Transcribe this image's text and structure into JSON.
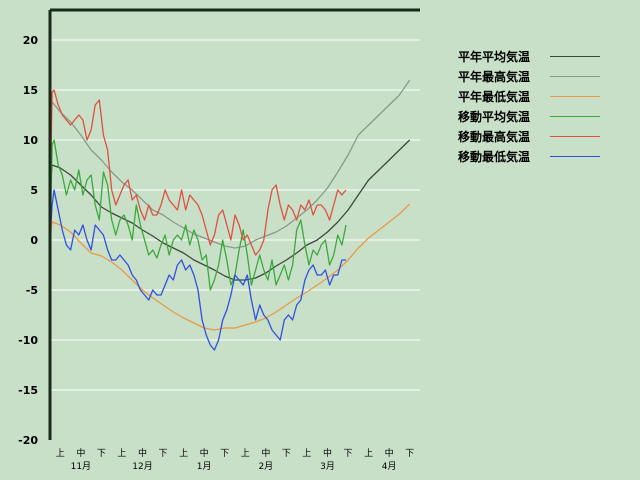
{
  "chart_data": {
    "type": "line",
    "title": "",
    "xlabel": "",
    "ylabel": "",
    "ylim": [
      -20,
      23
    ],
    "yticks": [
      20,
      15,
      10,
      5,
      0,
      -5,
      -10,
      -15,
      -20
    ],
    "x_period_labels": [
      "上",
      "中",
      "下",
      "上",
      "中",
      "下",
      "上",
      "中",
      "下",
      "上",
      "中",
      "下",
      "上",
      "中",
      "下",
      "上",
      "中",
      "下"
    ],
    "x_months": [
      "11月",
      "12月",
      "1月",
      "2月",
      "3月",
      "4月"
    ],
    "grid": true,
    "legend_position": "right",
    "x_day_range": [
      0,
      180
    ],
    "series": [
      {
        "name": "平年平均気温",
        "color": "#3c4a3c",
        "x": [
          0,
          1,
          5,
          10,
          15,
          20,
          25,
          30,
          35,
          40,
          45,
          50,
          55,
          60,
          65,
          70,
          75,
          80,
          85,
          90,
          95,
          100,
          105,
          110,
          115,
          120,
          125,
          130,
          135,
          140,
          145,
          150,
          155,
          160,
          165,
          170,
          175
        ],
        "y": [
          5,
          7.5,
          7.2,
          6.5,
          5.5,
          4.5,
          3.3,
          2.7,
          2.2,
          1.7,
          1.0,
          0.4,
          -0.3,
          -0.8,
          -1.3,
          -2.0,
          -2.5,
          -3.0,
          -3.6,
          -4.0,
          -4.0,
          -3.8,
          -3.3,
          -2.6,
          -2.0,
          -1.3,
          -0.5,
          0.0,
          0.8,
          1.8,
          3.0,
          4.5,
          6.0,
          7.0,
          8.0,
          9.0,
          10.0
        ]
      },
      {
        "name": "平年最高気温",
        "color": "#8a9a8a",
        "x": [
          0,
          1,
          5,
          10,
          15,
          20,
          25,
          30,
          35,
          40,
          45,
          50,
          55,
          60,
          65,
          70,
          75,
          80,
          85,
          90,
          95,
          100,
          105,
          110,
          115,
          120,
          125,
          130,
          135,
          140,
          145,
          150,
          155,
          160,
          165,
          170,
          175
        ],
        "y": [
          10,
          13.8,
          12.8,
          11.8,
          10.5,
          9.0,
          8.0,
          6.8,
          5.8,
          5.0,
          4.0,
          3.0,
          2.5,
          1.8,
          1.2,
          0.6,
          0.2,
          -0.2,
          -0.6,
          -0.8,
          -0.6,
          0.0,
          0.4,
          0.8,
          1.4,
          2.2,
          3.0,
          4.0,
          5.2,
          6.8,
          8.5,
          10.5,
          11.5,
          12.5,
          13.5,
          14.5,
          16.0
        ]
      },
      {
        "name": "平年最低気温",
        "color": "#e89a48",
        "x": [
          0,
          1,
          5,
          10,
          15,
          20,
          25,
          30,
          35,
          40,
          45,
          50,
          55,
          60,
          65,
          70,
          75,
          80,
          85,
          90,
          95,
          100,
          105,
          110,
          115,
          120,
          125,
          130,
          135,
          140,
          145,
          150,
          155,
          160,
          165,
          170,
          175
        ],
        "y": [
          0,
          1.8,
          1.5,
          0.8,
          -0.3,
          -1.3,
          -1.6,
          -2.2,
          -3.0,
          -4.0,
          -5.0,
          -5.8,
          -6.5,
          -7.2,
          -7.8,
          -8.3,
          -8.8,
          -9.0,
          -8.8,
          -8.8,
          -8.5,
          -8.2,
          -7.8,
          -7.2,
          -6.5,
          -5.8,
          -5.2,
          -4.5,
          -3.8,
          -3.0,
          -2.0,
          -0.8,
          0.2,
          1.0,
          1.8,
          2.6,
          3.6
        ]
      },
      {
        "name": "移動平均気温",
        "color": "#3aaa3a",
        "x": [
          0,
          1,
          2,
          4,
          6,
          8,
          10,
          12,
          14,
          16,
          18,
          20,
          22,
          24,
          26,
          28,
          30,
          32,
          34,
          36,
          38,
          40,
          42,
          44,
          46,
          48,
          50,
          52,
          54,
          56,
          58,
          60,
          62,
          64,
          66,
          68,
          70,
          72,
          74,
          76,
          78,
          80,
          82,
          84,
          86,
          88,
          90,
          92,
          94,
          96,
          98,
          100,
          102,
          104,
          106,
          108,
          110,
          112,
          114,
          116,
          118,
          120,
          122,
          124,
          126,
          128,
          130,
          132,
          134,
          136,
          138,
          140,
          142,
          144
        ],
        "y": [
          -1,
          9.5,
          10.0,
          7.5,
          6.5,
          4.5,
          6.0,
          5.0,
          7.0,
          4.5,
          6.0,
          6.5,
          3.5,
          2.0,
          6.8,
          5.5,
          2.0,
          0.5,
          2.0,
          2.5,
          1.5,
          0.0,
          3.5,
          1.5,
          0.0,
          -1.5,
          -1.0,
          -1.8,
          -0.5,
          0.5,
          -1.5,
          0.0,
          0.5,
          0.0,
          1.5,
          -0.5,
          1.0,
          0.0,
          -2.0,
          -1.5,
          -5.0,
          -4.0,
          -2.5,
          0.0,
          -2.0,
          -4.5,
          -3.5,
          -1.0,
          1.0,
          -1.5,
          -4.5,
          -3.0,
          -1.5,
          -3.0,
          -4.0,
          -2.0,
          -4.5,
          -3.5,
          -2.5,
          -4.0,
          -2.5,
          1.0,
          2.0,
          -0.5,
          -2.5,
          -1.0,
          -1.5,
          -0.5,
          0.0,
          -2.5,
          -1.5,
          0.5,
          -0.5,
          1.5
        ]
      },
      {
        "name": "移動最高気温",
        "color": "#e05040",
        "x": [
          0,
          1,
          2,
          4,
          6,
          8,
          10,
          12,
          14,
          16,
          18,
          20,
          22,
          24,
          26,
          28,
          30,
          32,
          34,
          36,
          38,
          40,
          42,
          44,
          46,
          48,
          50,
          52,
          54,
          56,
          58,
          60,
          62,
          64,
          66,
          68,
          70,
          72,
          74,
          76,
          78,
          80,
          82,
          84,
          86,
          88,
          90,
          92,
          94,
          96,
          98,
          100,
          102,
          104,
          106,
          108,
          110,
          112,
          114,
          116,
          118,
          120,
          122,
          124,
          126,
          128,
          130,
          132,
          134,
          136,
          138,
          140,
          142,
          144
        ],
        "y": [
          3,
          14.8,
          15.0,
          13.5,
          12.5,
          12.0,
          11.5,
          12.0,
          12.5,
          12.0,
          10.0,
          11.0,
          13.5,
          14.0,
          10.5,
          9.0,
          5.0,
          3.5,
          4.5,
          5.5,
          6.0,
          4.0,
          4.5,
          3.0,
          2.0,
          3.5,
          2.5,
          2.5,
          3.5,
          5.0,
          4.0,
          3.5,
          3.0,
          5.0,
          3.0,
          4.5,
          4.0,
          3.5,
          2.5,
          1.0,
          -0.5,
          0.5,
          2.5,
          3.0,
          1.5,
          0.0,
          2.5,
          1.5,
          0.0,
          0.5,
          -0.5,
          -1.5,
          -1.0,
          0.0,
          3.0,
          5.0,
          5.5,
          3.5,
          2.0,
          3.5,
          3.0,
          2.0,
          3.5,
          3.0,
          4.0,
          2.5,
          3.5,
          3.5,
          3.0,
          2.0,
          3.5,
          5.0,
          4.5,
          5.0
        ]
      },
      {
        "name": "移動最低気温",
        "color": "#3050e0",
        "x": [
          0,
          1,
          2,
          4,
          6,
          8,
          10,
          12,
          14,
          16,
          18,
          20,
          22,
          24,
          26,
          28,
          30,
          32,
          34,
          36,
          38,
          40,
          42,
          44,
          46,
          48,
          50,
          52,
          54,
          56,
          58,
          60,
          62,
          64,
          66,
          68,
          70,
          72,
          74,
          76,
          78,
          80,
          82,
          84,
          86,
          88,
          90,
          92,
          94,
          96,
          98,
          100,
          102,
          104,
          106,
          108,
          110,
          112,
          114,
          116,
          118,
          120,
          122,
          124,
          126,
          128,
          130,
          132,
          134,
          136,
          138,
          140,
          142,
          144
        ],
        "y": [
          0,
          3.5,
          5.0,
          3.0,
          1.0,
          -0.5,
          -1.0,
          1.0,
          0.5,
          1.5,
          0.0,
          -1.0,
          1.5,
          1.0,
          0.5,
          -1.0,
          -2.0,
          -2.0,
          -1.5,
          -2.0,
          -2.5,
          -3.5,
          -4.0,
          -5.0,
          -5.5,
          -6.0,
          -5.0,
          -5.5,
          -5.5,
          -4.5,
          -3.5,
          -4.0,
          -2.5,
          -2.0,
          -3.0,
          -2.5,
          -3.5,
          -5.0,
          -8.0,
          -9.5,
          -10.5,
          -11.0,
          -10.0,
          -8.0,
          -7.0,
          -5.5,
          -3.5,
          -4.0,
          -4.5,
          -3.5,
          -6.0,
          -8.0,
          -6.5,
          -7.5,
          -8.0,
          -9.0,
          -9.5,
          -10.0,
          -8.0,
          -7.5,
          -8.0,
          -6.5,
          -6.0,
          -4.0,
          -3.0,
          -2.5,
          -3.5,
          -3.5,
          -3.0,
          -4.5,
          -3.5,
          -3.5,
          -2.0,
          -2.0
        ]
      }
    ]
  }
}
